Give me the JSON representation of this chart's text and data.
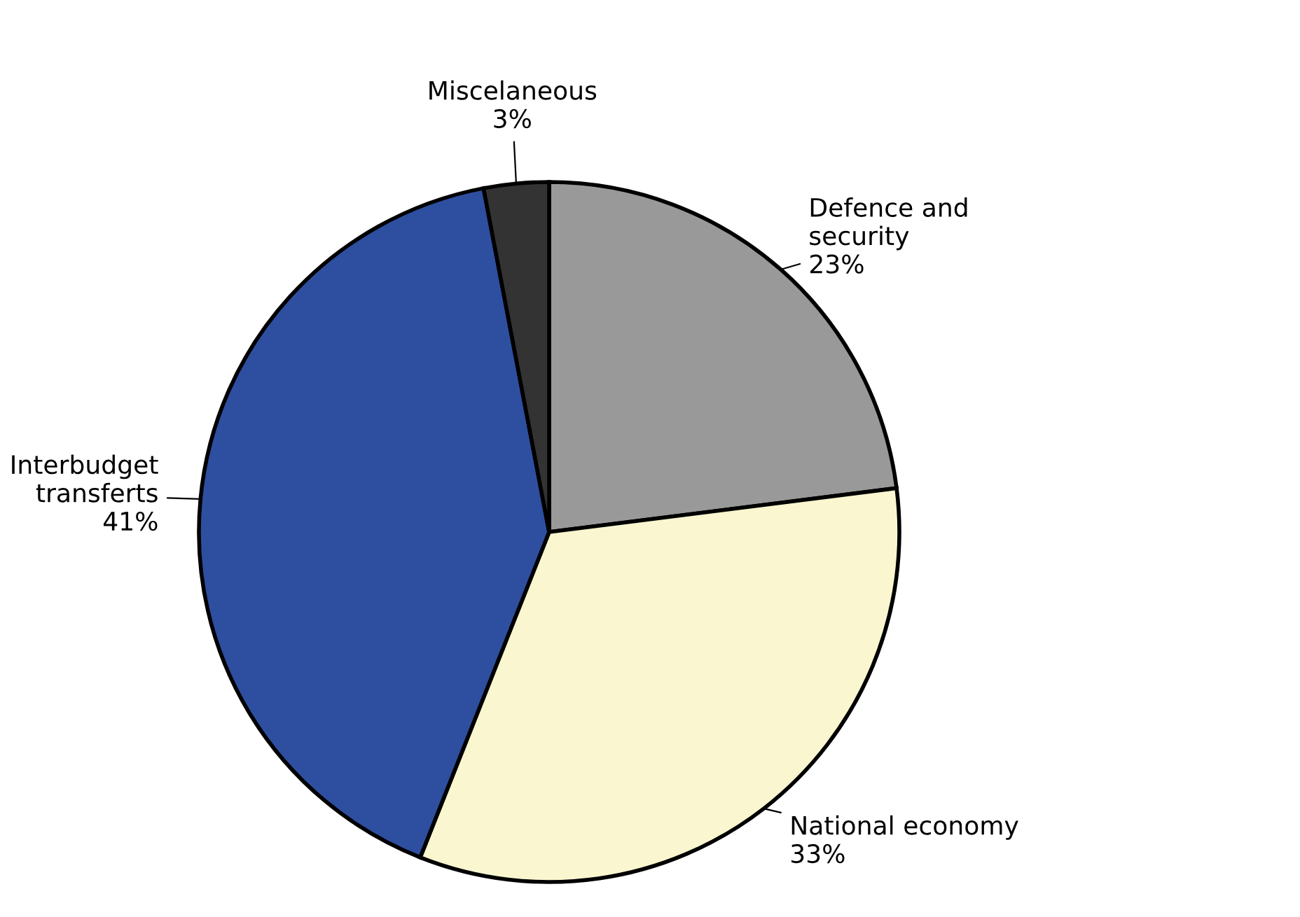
{
  "chart_data": {
    "type": "pie",
    "categories": [
      "Defence and\nsecurity",
      "National economy",
      "Interbudget\ntransferts",
      "Miscelaneous"
    ],
    "values": [
      23,
      33,
      41,
      3
    ],
    "value_labels": [
      "23%",
      "33%",
      "41%",
      "3%"
    ],
    "colors": [
      "#999999",
      "#f9f6d0",
      "#2e4fa0",
      "#333333"
    ]
  }
}
